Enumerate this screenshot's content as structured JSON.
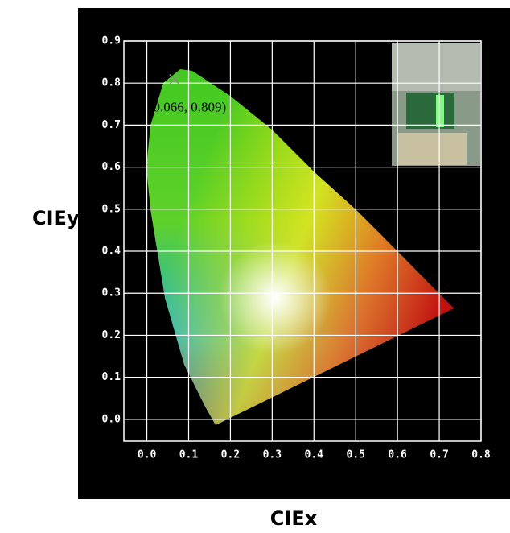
{
  "chart_data": {
    "type": "scatter",
    "x": [
      0.066
    ],
    "values": [
      0.809
    ],
    "color": "#8c8c8c",
    "annotation": "(0.066, 0.809)",
    "xlabel": "CIEx",
    "ylabel": "CIEy",
    "xlim": [
      -0.055,
      0.8
    ],
    "ylim": [
      -0.052,
      0.9
    ],
    "xticks": [
      {
        "value": 0,
        "label": "0.0"
      },
      0.1,
      0.2,
      0.3,
      0.4,
      0.5,
      0.6,
      0.7,
      0.8
    ],
    "yticks": [
      {
        "value": 0,
        "label": "0.0"
      },
      0.1,
      0.2,
      0.3,
      0.4,
      0.5,
      0.6,
      0.7,
      0.8,
      0.9
    ],
    "grid": true
  }
}
